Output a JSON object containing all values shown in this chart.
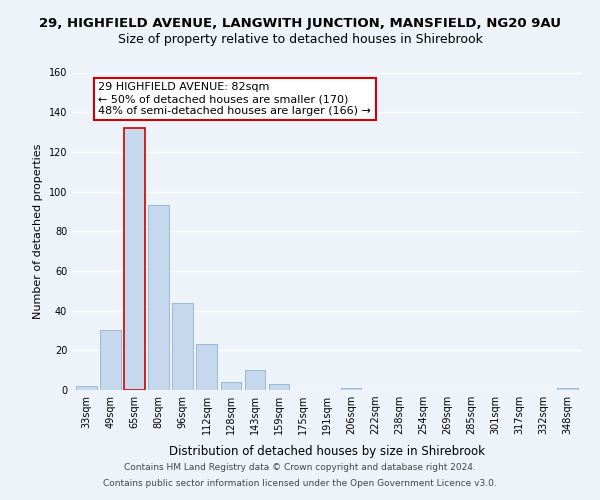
{
  "title": "29, HIGHFIELD AVENUE, LANGWITH JUNCTION, MANSFIELD, NG20 9AU",
  "subtitle": "Size of property relative to detached houses in Shirebrook",
  "xlabel": "Distribution of detached houses by size in Shirebrook",
  "ylabel": "Number of detached properties",
  "bar_color": "#c5d8ed",
  "bar_edge_color": "#7fa7c9",
  "categories": [
    "33sqm",
    "49sqm",
    "65sqm",
    "80sqm",
    "96sqm",
    "112sqm",
    "128sqm",
    "143sqm",
    "159sqm",
    "175sqm",
    "191sqm",
    "206sqm",
    "222sqm",
    "238sqm",
    "254sqm",
    "269sqm",
    "285sqm",
    "301sqm",
    "317sqm",
    "332sqm",
    "348sqm"
  ],
  "values": [
    2,
    30,
    132,
    93,
    44,
    23,
    4,
    10,
    3,
    0,
    0,
    1,
    0,
    0,
    0,
    0,
    0,
    0,
    0,
    0,
    1
  ],
  "ylim": [
    0,
    160
  ],
  "yticks": [
    0,
    20,
    40,
    60,
    80,
    100,
    120,
    140,
    160
  ],
  "annotation_title": "29 HIGHFIELD AVENUE: 82sqm",
  "annotation_line1": "← 50% of detached houses are smaller (170)",
  "annotation_line2": "48% of semi-detached houses are larger (166) →",
  "annotation_box_color": "#ffffff",
  "annotation_box_edge_color": "#cc0000",
  "marker_bin_index": 2,
  "footer_line1": "Contains HM Land Registry data © Crown copyright and database right 2024.",
  "footer_line2": "Contains public sector information licensed under the Open Government Licence v3.0.",
  "background_color": "#eef2f9",
  "grid_color": "#ffffff",
  "title_fontsize": 9.5,
  "subtitle_fontsize": 9,
  "xlabel_fontsize": 8.5,
  "ylabel_fontsize": 8,
  "tick_fontsize": 7,
  "footer_fontsize": 6.5,
  "ann_fontsize": 8
}
